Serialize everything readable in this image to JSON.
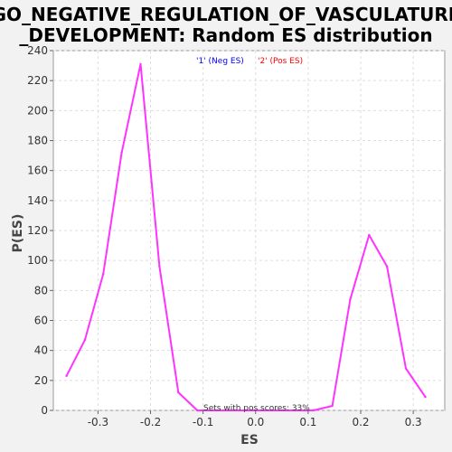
{
  "chart_data": {
    "type": "line",
    "title": [
      "GO_NEGATIVE_REGULATION_OF_VASCULATURE",
      "_DEVELOPMENT: Random ES distribution"
    ],
    "xlabel": "ES",
    "ylabel": "P(ES)",
    "xlim": [
      -0.385,
      0.36
    ],
    "ylim": [
      0,
      240
    ],
    "x_ticks": [
      -0.3,
      -0.2,
      -0.1,
      0.0,
      0.1,
      0.2,
      0.3
    ],
    "x_tick_labels": [
      "-0.3",
      "-0.2",
      "-0.1",
      "0.0",
      "0.1",
      "0.2",
      "0.3"
    ],
    "y_ticks": [
      0,
      20,
      40,
      60,
      80,
      100,
      120,
      140,
      160,
      180,
      200,
      220,
      240
    ],
    "grid": true,
    "legend_position": "top-center",
    "series": [
      {
        "name": "'1' (Neg ES)",
        "color": "#0000ff",
        "x": [],
        "y": []
      },
      {
        "name": "'2' (Pos ES)",
        "color": "#ff0000",
        "x": [],
        "y": []
      },
      {
        "name": "",
        "color": "#ff33ff",
        "x": [
          -0.36,
          -0.325,
          -0.29,
          -0.255,
          -0.219,
          -0.183,
          -0.147,
          -0.111,
          -0.075,
          0.075,
          0.11,
          0.146,
          0.18,
          0.216,
          0.25,
          0.286,
          0.323
        ],
        "y": [
          23,
          47,
          91,
          172,
          231,
          96,
          12,
          0,
          0,
          0,
          0,
          3,
          74,
          117,
          96,
          28,
          9
        ]
      }
    ],
    "annotations": [
      {
        "text": "Sets with pos scores: 33%"
      }
    ]
  }
}
